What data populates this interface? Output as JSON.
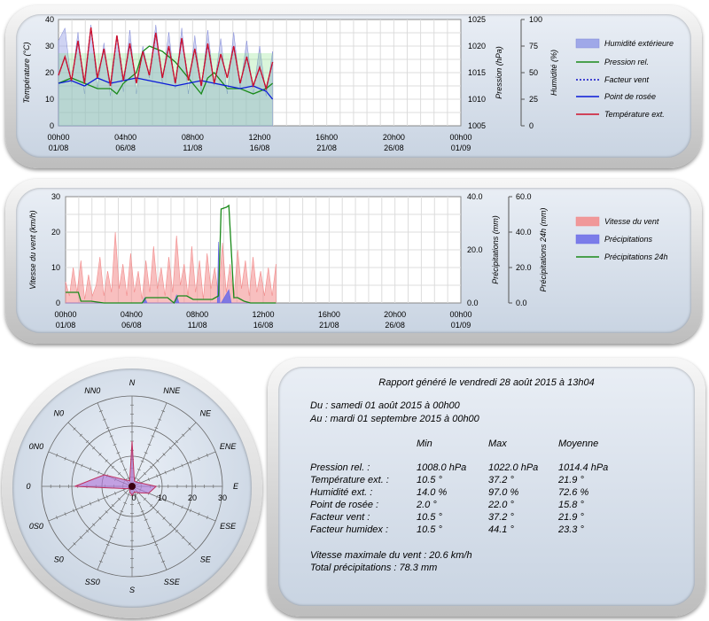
{
  "colors": {
    "humidity_fill": "#9fa8e8",
    "pressure": "#1a8a1a",
    "windchill": "#1010c8",
    "dewpoint": "#0a1ad8",
    "temperature": "#d0102a",
    "wind_fill": "#f28a8a",
    "rain_fill": "#6a6ae8",
    "rain24": "#1a8a1a",
    "rose_fill": "#b07ad8"
  },
  "chart_data": [
    {
      "type": "line",
      "x_tick_labels": [
        [
          "00h00",
          "01/08"
        ],
        [
          "04h00",
          "06/08"
        ],
        [
          "08h00",
          "11/08"
        ],
        [
          "12h00",
          "16/08"
        ],
        [
          "16h00",
          "21/08"
        ],
        [
          "20h00",
          "26/08"
        ],
        [
          "00h00",
          "01/09"
        ]
      ],
      "left_axis": {
        "label": "Température (°C)",
        "ticks": [
          "0",
          "10",
          "20",
          "30",
          "40"
        ],
        "range": [
          0,
          40
        ]
      },
      "pressure_axis": {
        "label": "Pression (hPa)",
        "ticks": [
          "1005",
          "1010",
          "1015",
          "1020",
          "1025"
        ],
        "range": [
          1005,
          1025
        ]
      },
      "humidity_axis": {
        "label": "Humidité (%)",
        "ticks": [
          "0",
          "25",
          "50",
          "75",
          "100"
        ],
        "range": [
          0,
          100
        ]
      },
      "legend": [
        "Humidité extérieure",
        "Pression rel.",
        "Facteur vent",
        "Point de rosée",
        "Température ext."
      ],
      "x_range_days": [
        0,
        31
      ],
      "series": [
        {
          "name": "Humidité extérieure",
          "axis": "humidity",
          "style": "area",
          "x": [
            0,
            0.5,
            1,
            1.5,
            2,
            2.5,
            3,
            3.5,
            4,
            4.5,
            5,
            5.5,
            6,
            6.5,
            7,
            7.5,
            8,
            8.5,
            9,
            9.5,
            10,
            10.5,
            11,
            11.5,
            12,
            12.5,
            13,
            13.5,
            14,
            14.5,
            15,
            15.5,
            16,
            16.5
          ],
          "values": [
            80,
            92,
            40,
            88,
            30,
            95,
            35,
            78,
            28,
            85,
            32,
            90,
            30,
            75,
            45,
            95,
            40,
            88,
            35,
            92,
            30,
            85,
            32,
            90,
            38,
            82,
            30,
            88,
            35,
            80,
            30,
            75,
            28,
            70
          ]
        },
        {
          "name": "Pression rel.",
          "axis": "pressure",
          "style": "line",
          "x": [
            0,
            1,
            2,
            3,
            4,
            4.5,
            5,
            6,
            6.5,
            7,
            8,
            9,
            10,
            11,
            11.5,
            12,
            13,
            14,
            15,
            16,
            16.5
          ],
          "values": [
            1013,
            1014,
            1013,
            1012,
            1012,
            1011,
            1013,
            1015,
            1019,
            1020,
            1019,
            1017,
            1014,
            1011,
            1014,
            1015,
            1012,
            1012,
            1011,
            1012,
            1013
          ]
        },
        {
          "name": "Facteur vent",
          "axis": "left",
          "style": "dashed",
          "x": [
            0,
            0.5,
            1,
            1.5,
            2,
            2.5,
            3,
            3.5,
            4,
            4.5,
            5,
            5.5,
            6,
            6.5,
            7,
            7.5,
            8,
            8.5,
            9,
            9.5,
            10,
            10.5,
            11,
            11.5,
            12,
            12.5,
            13,
            13.5,
            14,
            14.5,
            15,
            15.5,
            16,
            16.5
          ],
          "values": [
            19,
            26,
            17,
            32,
            16,
            37,
            18,
            29,
            15,
            34,
            17,
            31,
            16,
            28,
            19,
            35,
            18,
            30,
            16,
            33,
            17,
            29,
            15,
            31,
            16,
            27,
            18,
            30,
            16,
            26,
            15,
            22,
            14,
            24
          ]
        },
        {
          "name": "Point de rosée",
          "axis": "left",
          "style": "line",
          "x": [
            0,
            1,
            2,
            3,
            4,
            5,
            6,
            7,
            8,
            9,
            10,
            11,
            12,
            13,
            14,
            15,
            16,
            16.5
          ],
          "values": [
            16,
            17,
            15,
            18,
            16,
            17,
            18,
            17,
            16,
            15,
            16,
            17,
            16,
            15,
            14,
            15,
            13,
            10
          ]
        },
        {
          "name": "Température ext.",
          "axis": "left",
          "style": "line",
          "x": [
            0,
            0.5,
            1,
            1.5,
            2,
            2.5,
            3,
            3.5,
            4,
            4.5,
            5,
            5.5,
            6,
            6.5,
            7,
            7.5,
            8,
            8.5,
            9,
            9.5,
            10,
            10.5,
            11,
            11.5,
            12,
            12.5,
            13,
            13.5,
            14,
            14.5,
            15,
            15.5,
            16,
            16.5
          ],
          "values": [
            19,
            26,
            17,
            32,
            16,
            37,
            18,
            29,
            15,
            34,
            17,
            31,
            16,
            28,
            19,
            35,
            18,
            30,
            16,
            33,
            17,
            29,
            15,
            31,
            16,
            27,
            18,
            30,
            16,
            26,
            15,
            22,
            14,
            24
          ]
        }
      ]
    },
    {
      "type": "area",
      "x_tick_labels": [
        [
          "00h00",
          "01/08"
        ],
        [
          "04h00",
          "06/08"
        ],
        [
          "08h00",
          "11/08"
        ],
        [
          "12h00",
          "16/08"
        ],
        [
          "16h00",
          "21/08"
        ],
        [
          "20h00",
          "26/08"
        ],
        [
          "00h00",
          "01/09"
        ]
      ],
      "left_axis": {
        "label": "Vitesse du vent (km/h)",
        "ticks": [
          "0",
          "10",
          "20",
          "30"
        ],
        "range": [
          0,
          30
        ]
      },
      "rain_axis": {
        "label": "Précipitations (mm)",
        "ticks": [
          "0.0",
          "20.0",
          "40.0"
        ],
        "range": [
          0,
          40
        ]
      },
      "rain24_axis": {
        "label": "Précipitations 24h (mm)",
        "ticks": [
          "0.0",
          "20.0",
          "40.0",
          "60.0"
        ],
        "range": [
          0,
          60
        ]
      },
      "legend": [
        "Vitesse du vent",
        "Précipitations",
        "Précipitations 24h"
      ],
      "x_range_days": [
        0,
        31
      ],
      "series": [
        {
          "name": "Vitesse du vent",
          "axis": "left",
          "style": "area",
          "x": [
            0,
            0.3,
            0.6,
            0.9,
            1.2,
            1.5,
            1.8,
            2.1,
            2.4,
            2.7,
            3,
            3.3,
            3.6,
            3.9,
            4.2,
            4.5,
            4.8,
            5.1,
            5.4,
            5.7,
            6,
            6.3,
            6.6,
            6.9,
            7.2,
            7.5,
            7.8,
            8.1,
            8.4,
            8.7,
            9,
            9.3,
            9.6,
            9.9,
            10.2,
            10.5,
            10.8,
            11.1,
            11.4,
            11.7,
            12,
            12.3,
            12.6,
            12.9,
            13.2,
            13.5,
            13.8,
            14.1,
            14.4,
            14.7,
            15,
            15.3,
            15.6,
            15.9,
            16.2,
            16.5
          ],
          "values": [
            6,
            2,
            10,
            3,
            12,
            1,
            8,
            2,
            5,
            13,
            2,
            9,
            3,
            20,
            4,
            11,
            2,
            14,
            3,
            9,
            1,
            12,
            3,
            16,
            4,
            10,
            2,
            13,
            3,
            19,
            5,
            11,
            2,
            16,
            3,
            12,
            1,
            14,
            4,
            10,
            2,
            17,
            3,
            11,
            1,
            15,
            4,
            12,
            2,
            13,
            3,
            9,
            2,
            10,
            2,
            11
          ]
        },
        {
          "name": "Précipitations",
          "axis": "rain",
          "style": "area",
          "x": [
            0,
            6,
            6.2,
            6.4,
            8.5,
            8.7,
            8.9,
            11.9,
            12.0,
            12.1,
            12.2,
            12.8,
            13,
            13.1,
            16.5
          ],
          "values": [
            0,
            0,
            2,
            0,
            0,
            3,
            0,
            0,
            23,
            0,
            0,
            5,
            0,
            0,
            0
          ]
        },
        {
          "name": "Précipitations 24h",
          "axis": "rain24",
          "style": "line",
          "x": [
            0,
            1,
            1.2,
            2,
            3,
            4,
            6,
            6.3,
            7,
            8,
            8.5,
            8.8,
            9.5,
            10,
            11.5,
            12,
            12.2,
            12.6,
            12.8,
            13.2,
            13.5,
            14,
            14.5,
            16.5
          ],
          "values": [
            6,
            6,
            1,
            1,
            0,
            0,
            0,
            3,
            3,
            3,
            0,
            4,
            4,
            2,
            2,
            4,
            53,
            54,
            55,
            3,
            3,
            1,
            0,
            0
          ]
        }
      ]
    },
    {
      "type": "scatter",
      "chart_kind": "wind-rose",
      "direction_labels": [
        "N",
        "NNE",
        "NE",
        "ENE",
        "E",
        "ESE",
        "SE",
        "SSE",
        "S",
        "SS0",
        "S0",
        "0S0",
        "0",
        "0N0",
        "N0",
        "NN0"
      ],
      "radial_ticks": [
        "0",
        "10",
        "20",
        "30"
      ],
      "range": [
        0,
        30
      ],
      "series": [
        {
          "name": "rose",
          "values": [
            15,
            2,
            2,
            3,
            8,
            6,
            3,
            2,
            3,
            2,
            1,
            2,
            19,
            10,
            3,
            2
          ]
        }
      ]
    }
  ],
  "report": {
    "title": "Rapport généré le vendredi 28 août 2015 à 13h04",
    "from": "Du : samedi 01 août 2015 à 00h00",
    "to": "Au : mardi 01 septembre 2015 à 00h00",
    "headers": [
      "Min",
      "Max",
      "Moyenne"
    ],
    "rows": [
      {
        "label": "Pression rel. :",
        "min": "1008.0 hPa",
        "max": "1022.0 hPa",
        "avg": "1014.4 hPa"
      },
      {
        "label": "Température ext. :",
        "min": "10.5 °",
        "max": "37.2 °",
        "avg": "21.9 °"
      },
      {
        "label": "Humidité ext. :",
        "min": "14.0 %",
        "max": "97.0 %",
        "avg": "72.6 %"
      },
      {
        "label": "Point de rosée :",
        "min": "2.0 °",
        "max": "22.0 °",
        "avg": "15.8 °"
      },
      {
        "label": "Facteur vent :",
        "min": "10.5 °",
        "max": "37.2 °",
        "avg": "21.9 °"
      },
      {
        "label": "Facteur humidex :",
        "min": "10.5 °",
        "max": "44.1 °",
        "avg": "23.3 °"
      }
    ],
    "max_wind": "Vitesse maximale du vent : 20.6 km/h",
    "total_rain": "Total précipitations : 78.3 mm"
  }
}
